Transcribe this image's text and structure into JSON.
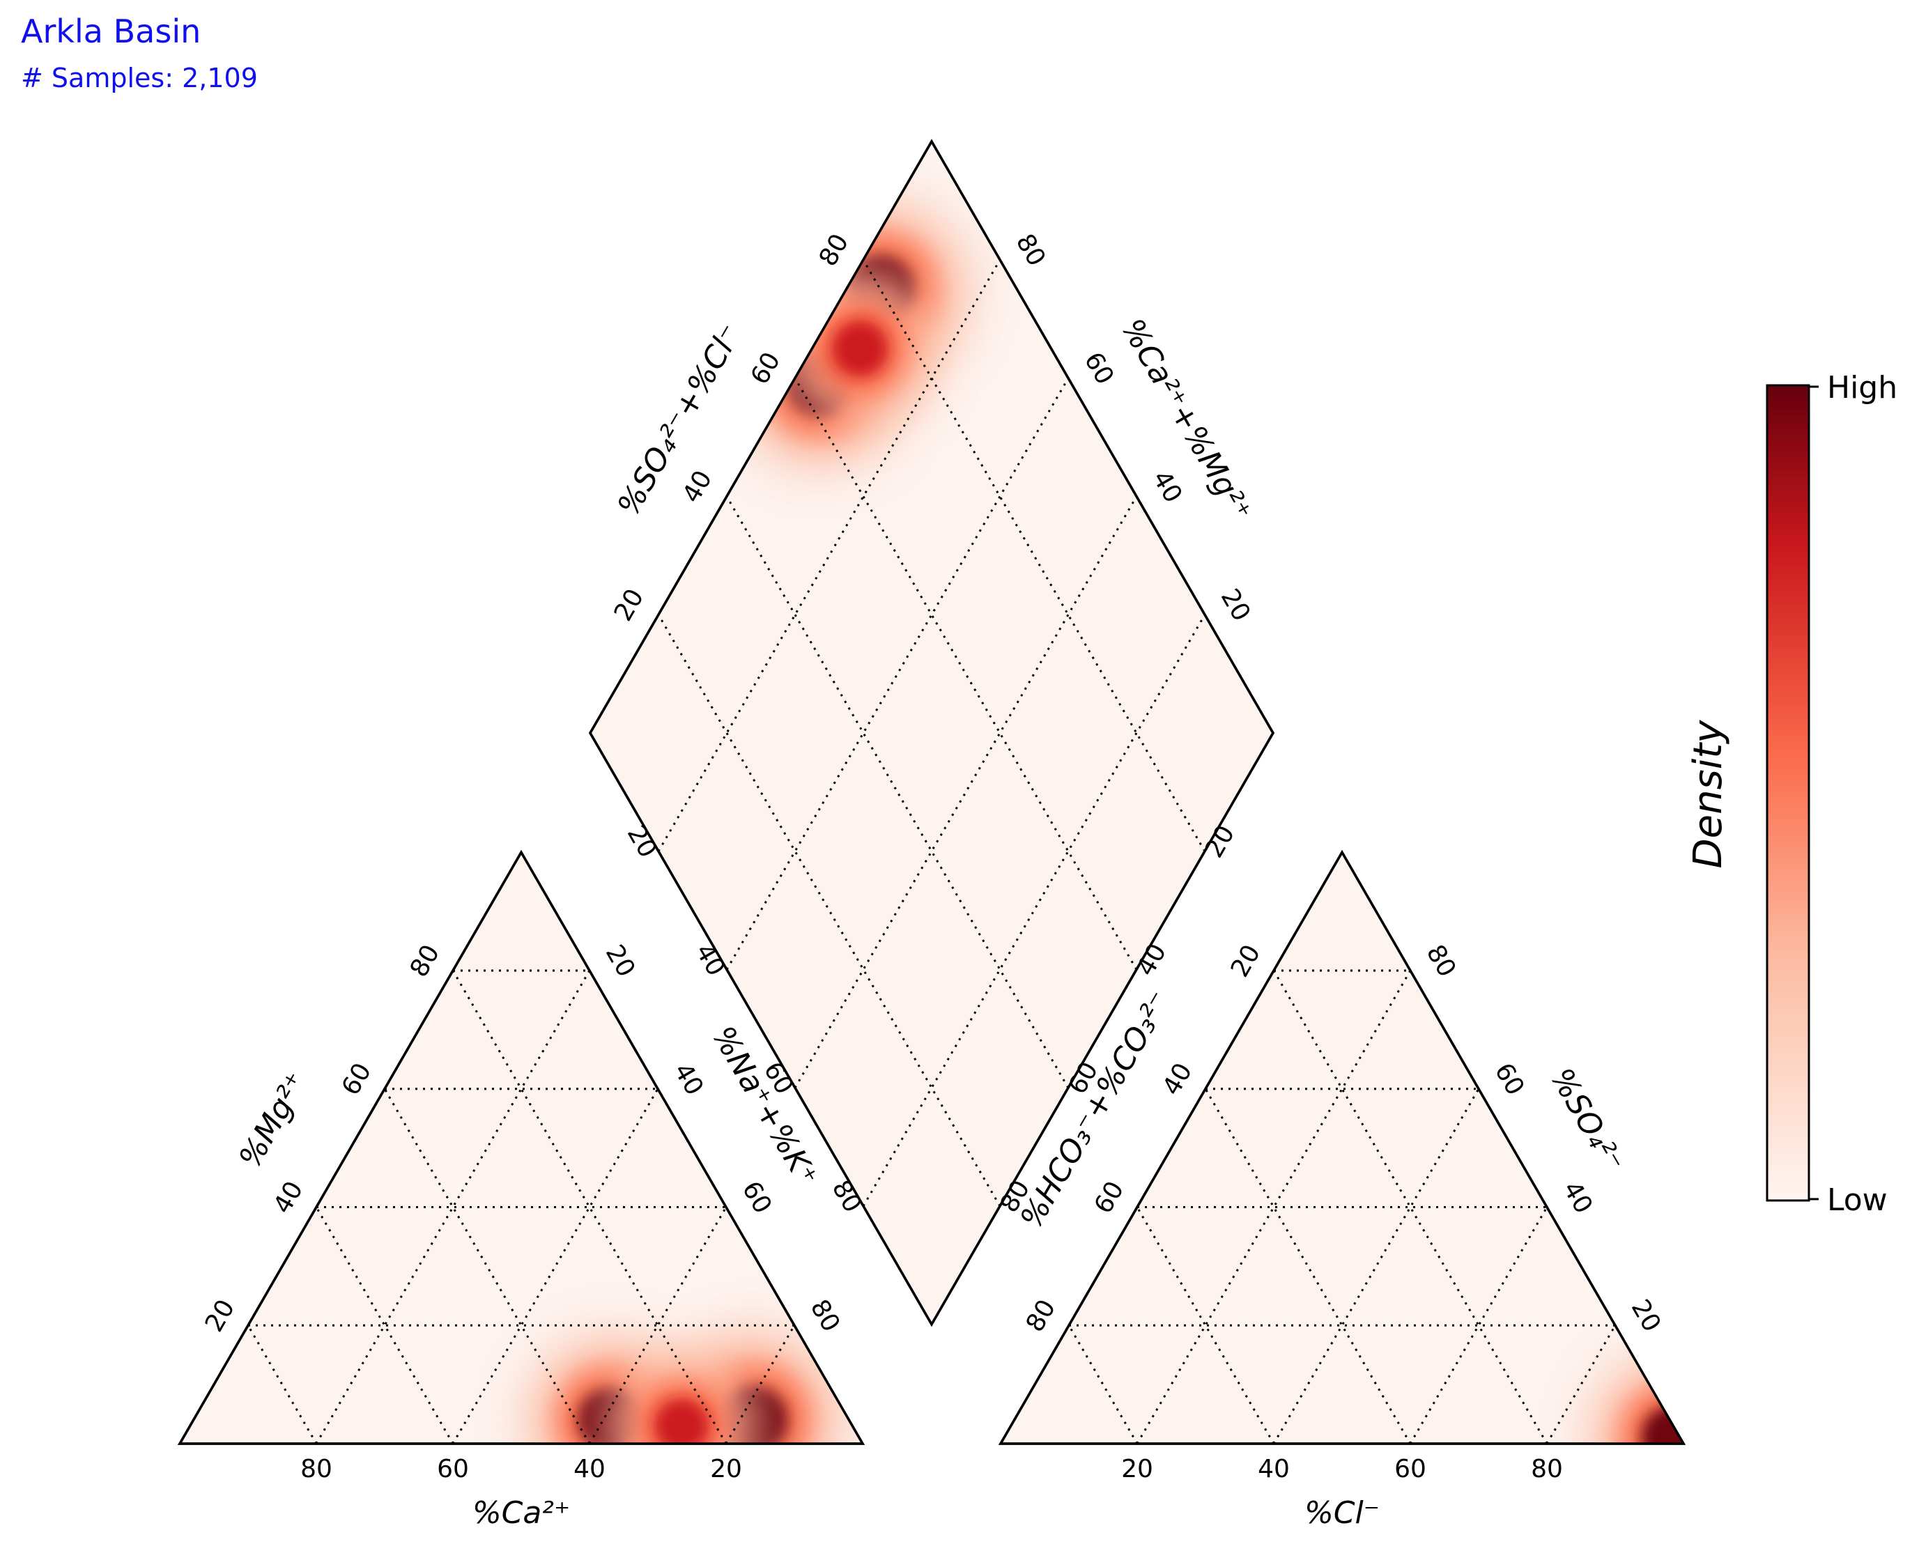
{
  "title": "Arkla Basin",
  "subtitle": "# Samples: 2,109",
  "chart_data": {
    "type": "piper-density",
    "axes": {
      "cation_bottom": "%Ca²⁺",
      "cation_left": "%Mg²⁺",
      "cation_right": "%Na⁺+%K⁺",
      "anion_bottom": "%Cl⁻",
      "anion_right": "%SO₄²⁻",
      "diamond_upper_left": "%SO₄²⁻+%Cl⁻",
      "diamond_upper_right": "%Ca²⁺+%Mg²⁺",
      "diamond_lower_left": "%HCO₃⁻+%CO₃²⁻"
    },
    "ticks": [
      "20",
      "40",
      "60",
      "80"
    ],
    "colorbar": {
      "label": "Density",
      "high_label": "High",
      "low_label": "Low",
      "colors": [
        "#fff5f0",
        "#fcbba1",
        "#fb6a4a",
        "#cb181d",
        "#67000d"
      ]
    },
    "density_hotspots": {
      "cation": [
        {
          "ca": 14,
          "mg": 4,
          "na_k": 82,
          "intensity": 1.0
        },
        {
          "ca": 35,
          "mg": 4,
          "na_k": 61,
          "intensity": 0.85
        },
        {
          "ca": 25,
          "mg": 3,
          "na_k": 72,
          "intensity": 0.55
        }
      ],
      "anion": [
        {
          "cl": 98,
          "so4": 1,
          "hco3_co3": 1,
          "intensity": 0.85
        }
      ],
      "diamond": [
        {
          "ca_mg": 20,
          "so4_cl": 95,
          "intensity": 1.0
        },
        {
          "ca_mg": 37,
          "so4_cl": 96,
          "intensity": 0.85
        },
        {
          "ca_mg": 28,
          "so4_cl": 93,
          "intensity": 0.6
        }
      ]
    },
    "grid": true
  }
}
